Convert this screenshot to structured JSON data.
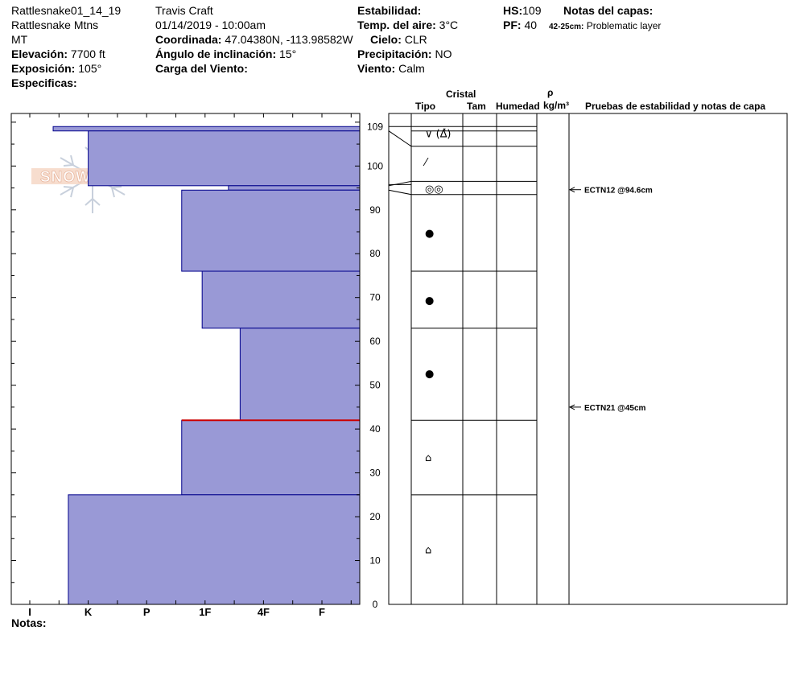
{
  "header": {
    "pit_name": "Rattlesnake01_14_19",
    "location": "Rattlesnake Mtns",
    "state": "MT",
    "elevation_label": "Elevación:",
    "elevation_value": "7700 ft",
    "aspect_label": "Exposición:",
    "aspect_value": "105°",
    "specifics_label": "Especificas:",
    "observer": "Travis  Craft",
    "datetime": "01/14/2019 - 10:00am",
    "coord_label": "Coordinada:",
    "coord_value": "47.04380N, -113.98582W",
    "slope_label": "Ángulo de inclinación:",
    "slope_value": "15°",
    "wind_load_label": "Carga del Viento:",
    "stability_label": "Estabilidad:",
    "air_temp_label": "Temp. del aire:",
    "air_temp_value": "3°C",
    "sky_label": "Cielo:",
    "sky_value": "CLR",
    "precip_label": "Precipitación:",
    "precip_value": "NO",
    "wind_label": "Viento:",
    "wind_value": "Calm",
    "hs_label": "HS:",
    "hs_value": "109",
    "pf_label": "PF:",
    "pf_value": "40",
    "layer_notes_label": "Notas del capas:",
    "layer_note_range": "42-25cm:",
    "layer_note_text": "Problematic layer"
  },
  "logo_text": "SNOW PILOT",
  "columns": {
    "crystal": "Cristal",
    "type": "Tipo",
    "size": "Tam",
    "moisture": "Humedad",
    "rho": "ρ",
    "density_unit": "kg/m³",
    "tests": "Pruebas de estabilidad y notas de capa"
  },
  "notes_label": "Notas:",
  "colors": {
    "bar_fill": "#9999d6",
    "bar_stroke": "#00008b",
    "problem_line": "#cc0000"
  },
  "chart_data": {
    "type": "bar",
    "ylabel": "",
    "ylim": [
      0,
      112
    ],
    "y_ticks": [
      0,
      10,
      20,
      30,
      40,
      50,
      60,
      70,
      80,
      90,
      100,
      109
    ],
    "hardness_scale": [
      "I",
      "K",
      "P",
      "1F",
      "4F",
      "F"
    ],
    "layers": [
      {
        "top": 109,
        "bottom": 108,
        "hardness": 0.4
      },
      {
        "top": 108,
        "bottom": 95.5,
        "hardness": 1.0
      },
      {
        "top": 95.5,
        "bottom": 94.5,
        "hardness": 3.4
      },
      {
        "top": 94.5,
        "bottom": 76,
        "hardness": 2.6
      },
      {
        "top": 76,
        "bottom": 63,
        "hardness": 2.95
      },
      {
        "top": 63,
        "bottom": 42,
        "hardness": 3.6
      },
      {
        "top": 42,
        "bottom": 25,
        "hardness": 2.6
      },
      {
        "top": 25,
        "bottom": 0,
        "hardness": 0.66
      }
    ],
    "problem_layer_depth": 42,
    "crystal_boundaries": [
      108,
      104.5,
      96.5,
      93.5,
      76,
      63,
      42,
      25
    ],
    "grain_symbols": [
      {
        "depth": 107.5,
        "symbol": "∨ (∆̽)"
      },
      {
        "depth": 101,
        "symbol": "⁄"
      },
      {
        "depth": 94.9,
        "symbol": "◎◎"
      },
      {
        "depth": 84.8,
        "symbol": "●"
      },
      {
        "depth": 69.5,
        "symbol": "●"
      },
      {
        "depth": 52.8,
        "symbol": "●"
      },
      {
        "depth": 33.6,
        "symbol": "⌂"
      },
      {
        "depth": 12.6,
        "symbol": "⌂"
      }
    ],
    "tests": [
      {
        "depth": 94.6,
        "label": "ECTN12 @94.6cm"
      },
      {
        "depth": 45,
        "label": "ECTN21 @45cm"
      }
    ]
  }
}
